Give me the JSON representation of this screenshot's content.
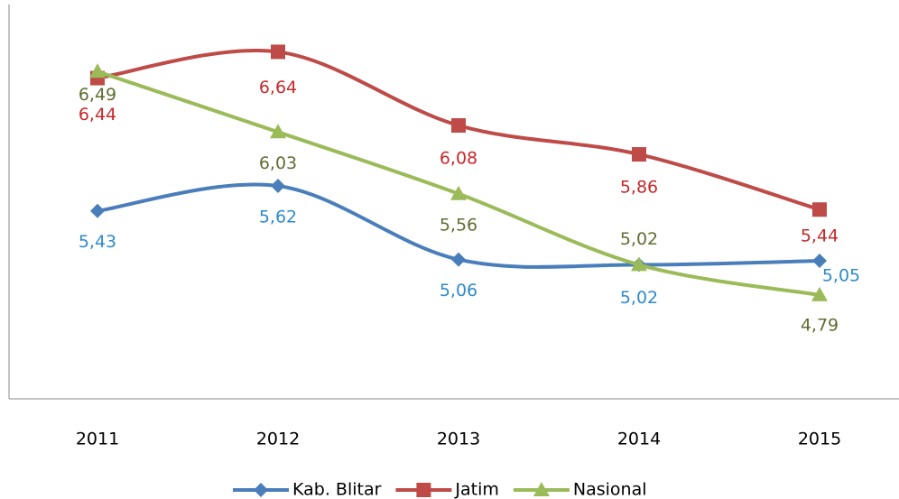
{
  "chart_data": {
    "type": "line",
    "categories": [
      "2011",
      "2012",
      "2013",
      "2014",
      "2015"
    ],
    "ylim": [
      4,
      7
    ],
    "legend": "bottom",
    "series": [
      {
        "name": "Kab. Blitar",
        "color": "#4a7ebb",
        "label_color": "#2e8bcc",
        "marker": "diamond",
        "values": [
          5.43,
          5.62,
          5.06,
          5.02,
          5.05
        ],
        "value_labels": [
          "5,43",
          "5,62",
          "5,06",
          "5,02",
          "5,05"
        ]
      },
      {
        "name": "Jatim",
        "color": "#be4b48",
        "label_color": "#c8282a",
        "marker": "square",
        "values": [
          6.44,
          6.64,
          6.08,
          5.86,
          5.44
        ],
        "value_labels": [
          "6,44",
          "6,64",
          "6,08",
          "5,86",
          "5,44"
        ]
      },
      {
        "name": "Nasional",
        "color": "#9bbb59",
        "label_color": "#5f6e32",
        "marker": "triangle",
        "values": [
          6.49,
          6.03,
          5.56,
          5.02,
          4.79
        ],
        "value_labels": [
          "6,49",
          "6,03",
          "5,56",
          "5,02",
          "4,79"
        ]
      }
    ]
  }
}
